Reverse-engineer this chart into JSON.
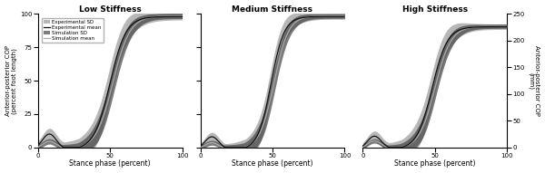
{
  "titles": [
    "Low Stiffness",
    "Medium Stiffness",
    "High Stiffness"
  ],
  "xlabel": "Stance phase (percent)",
  "ylabel_left": "Anterior-posterior COP\n(percent foot length)",
  "ylabel_right": "Anterior-posterior COP\n(mm)",
  "xlim": [
    0,
    100
  ],
  "ylim_left": [
    0,
    100
  ],
  "ylim_right": [
    0,
    250
  ],
  "xticks": [
    0,
    50,
    100
  ],
  "yticks_left": [
    0,
    25,
    50,
    75,
    100
  ],
  "yticks_right": [
    0,
    50,
    100,
    150,
    200,
    250
  ],
  "exp_sd_color": "#888888",
  "sim_sd_color": "#444444",
  "exp_mean_color": "#111111",
  "sim_mean_color": "#aaaaaa",
  "exp_sd_alpha": 0.6,
  "sim_sd_alpha": 0.7,
  "legend_entries": [
    "Experimental SD",
    "Experimental mean",
    "Simulation SD",
    "Simulation mean"
  ],
  "background": "#ffffff",
  "figsize": [
    6.0,
    1.91
  ],
  "dpi": 100
}
